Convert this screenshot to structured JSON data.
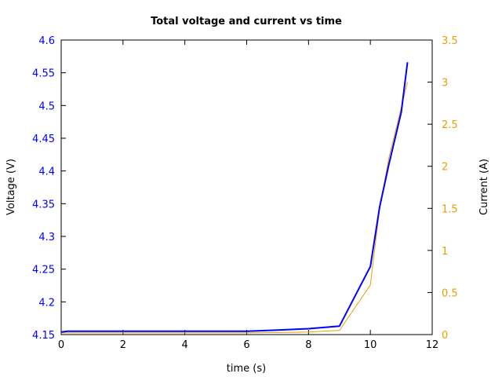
{
  "chart_data": {
    "type": "line",
    "title": "Total voltage and current vs time",
    "xlabel": "time (s)",
    "ylabel_left": "Voltage (V)",
    "ylabel_right": "Current (A)",
    "xlim": [
      0,
      12
    ],
    "ylim_left": [
      4.15,
      4.6
    ],
    "ylim_right": [
      0,
      3.5
    ],
    "x_ticks": [
      "0",
      "2",
      "4",
      "6",
      "8",
      "10",
      "12"
    ],
    "y_left_ticks": [
      "4.15",
      "4.2",
      "4.25",
      "4.3",
      "4.35",
      "4.4",
      "4.45",
      "4.5",
      "4.55",
      "4.6"
    ],
    "y_right_ticks": [
      "0",
      "0.5",
      "1",
      "1.5",
      "2",
      "2.5",
      "3",
      "3.5"
    ],
    "grid": false,
    "series": [
      {
        "name": "Voltage (V)",
        "axis": "left",
        "color": "#0000ff",
        "x": [
          0,
          0.2,
          6,
          7,
          8,
          9,
          10,
          10.3,
          10.6,
          11,
          11.2
        ],
        "y": [
          4.154,
          4.155,
          4.155,
          4.157,
          4.159,
          4.163,
          4.254,
          4.345,
          4.41,
          4.49,
          4.566
        ]
      },
      {
        "name": "Current (A)",
        "axis": "right",
        "color": "#e5a100",
        "x": [
          0,
          6,
          8,
          9,
          10,
          10.3,
          10.6,
          11,
          11.2
        ],
        "y": [
          0.02,
          0.02,
          0.03,
          0.05,
          0.59,
          1.5,
          2.1,
          2.7,
          3.0
        ]
      }
    ]
  }
}
